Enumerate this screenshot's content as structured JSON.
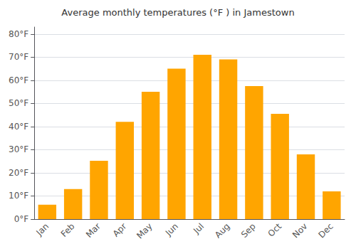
{
  "chart_data": {
    "type": "bar",
    "title": "Average monthly temperatures (°F ) in Jamestown",
    "categories": [
      "Jan",
      "Feb",
      "Mar",
      "Apr",
      "May",
      "Jun",
      "Jul",
      "Aug",
      "Sep",
      "Oct",
      "Nov",
      "Dec"
    ],
    "values": [
      6.2,
      13.0,
      25.2,
      42.0,
      55.0,
      65.0,
      71.0,
      69.0,
      57.5,
      45.5,
      28.0,
      12.0
    ],
    "color": "#FFA500",
    "ylim": [
      0,
      83
    ],
    "yticks": [
      {
        "value": 0,
        "label": "0°F"
      },
      {
        "value": 10,
        "label": "10°F"
      },
      {
        "value": 20,
        "label": "20°F"
      },
      {
        "value": 30,
        "label": "30°F"
      },
      {
        "value": 40,
        "label": "40°F"
      },
      {
        "value": 50,
        "label": "50°F"
      },
      {
        "value": 60,
        "label": "60°F"
      },
      {
        "value": 70,
        "label": "70°F"
      },
      {
        "value": 80,
        "label": "80°F"
      }
    ],
    "grid": true
  }
}
